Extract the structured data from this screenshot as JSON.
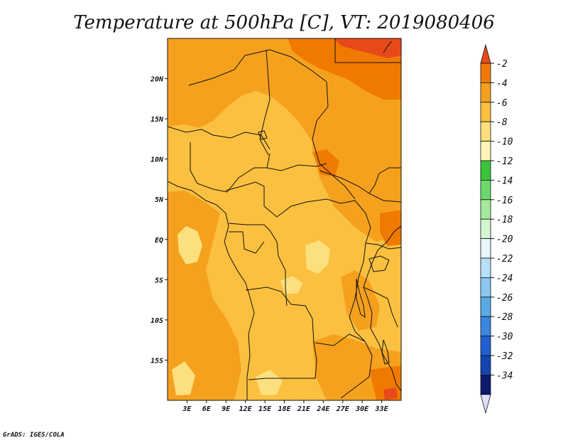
{
  "title": "Temperature at 500hPa [C], VT: 2019080406",
  "credit": "GrADS: IGES/COLA",
  "map": {
    "lat_range": [
      -20,
      25
    ],
    "lon_range": [
      0,
      36
    ],
    "lat_ticks": [
      {
        "value": 20,
        "label": "20N"
      },
      {
        "value": 15,
        "label": "15N"
      },
      {
        "value": 10,
        "label": "10N"
      },
      {
        "value": 5,
        "label": "5N"
      },
      {
        "value": 0,
        "label": "EQ"
      },
      {
        "value": -5,
        "label": "5S"
      },
      {
        "value": -10,
        "label": "10S"
      },
      {
        "value": -15,
        "label": "15S"
      }
    ],
    "lon_ticks": [
      {
        "value": 3,
        "label": "3E"
      },
      {
        "value": 6,
        "label": "6E"
      },
      {
        "value": 9,
        "label": "9E"
      },
      {
        "value": 12,
        "label": "12E"
      },
      {
        "value": 15,
        "label": "15E"
      },
      {
        "value": 18,
        "label": "18E"
      },
      {
        "value": 21,
        "label": "21E"
      },
      {
        "value": 24,
        "label": "24E"
      },
      {
        "value": 27,
        "label": "27E"
      },
      {
        "value": 30,
        "label": "30E"
      },
      {
        "value": 33,
        "label": "33E"
      }
    ]
  },
  "colorbar": {
    "levels": [
      "-2",
      "-4",
      "-6",
      "-8",
      "-10",
      "-12",
      "-14",
      "-16",
      "-18",
      "-20",
      "-22",
      "-24",
      "-26",
      "-28",
      "-30",
      "-32",
      "-34"
    ],
    "colors": [
      "#e8491a",
      "#f07a00",
      "#f5a11e",
      "#fbc040",
      "#fde07e",
      "#fef6b8",
      "#3ac43a",
      "#6cd96c",
      "#a6ea9e",
      "#d2f6d0",
      "#e6f6fc",
      "#b8e0f8",
      "#8ac8f2",
      "#5aaae8",
      "#3a86e0",
      "#1f5fcf",
      "#1444b0",
      "#0e1a6b"
    ],
    "bottom_arrow_color": "#e0e0ff"
  },
  "field_colors": {
    "t_minus_9": "#fde07e",
    "t_minus_7": "#fbc040",
    "t_minus_5": "#f5a11e",
    "t_minus_3": "#f07a00",
    "t_minus_2": "#e8491a"
  }
}
